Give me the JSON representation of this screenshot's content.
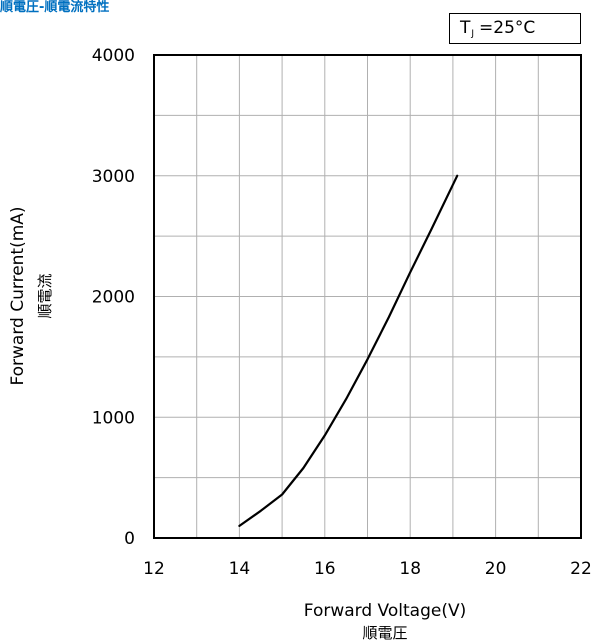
{
  "chart_data": {
    "type": "line",
    "title": "順電圧-順電流特性",
    "annotation": {
      "prefix": "T",
      "subscript": "J",
      "value": "=25°C"
    },
    "xlabel": "Forward Voltage(V)",
    "xlabel_sub": "順電圧",
    "ylabel": "Forward Current(mA)",
    "ylabel_sub": "順電流",
    "xlim": [
      12,
      22
    ],
    "ylim": [
      0,
      4000
    ],
    "x_ticks": [
      "12",
      "14",
      "16",
      "18",
      "20",
      "22"
    ],
    "y_ticks": [
      "0",
      "1000",
      "2000",
      "3000",
      "4000"
    ],
    "grid": true,
    "grid_x_step": 1,
    "grid_y_step": 500,
    "line_color": "#000000",
    "series": [
      {
        "x": [
          14.0,
          14.5,
          15.0,
          15.5,
          16.0,
          16.5,
          17.0,
          17.5,
          18.0,
          18.5,
          19.1
        ],
        "y": [
          100,
          225,
          360,
          580,
          850,
          1150,
          1480,
          1830,
          2200,
          2560,
          3000
        ]
      }
    ]
  }
}
